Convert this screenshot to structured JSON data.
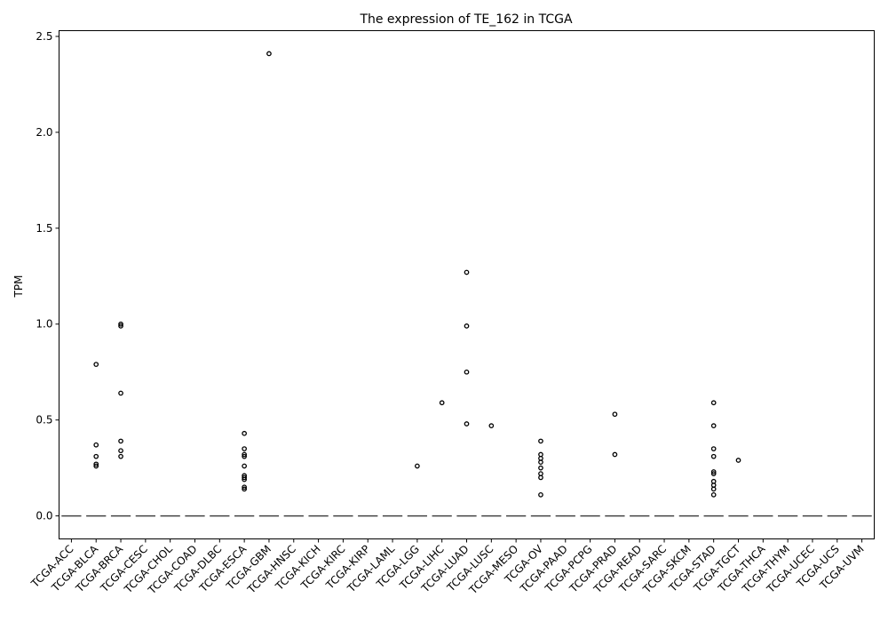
{
  "chart_data": {
    "type": "box",
    "title": "The expression of TE_162 in TCGA",
    "xlabel": "",
    "ylabel": "TPM",
    "ylim": [
      -0.12,
      2.53
    ],
    "yticks": [
      "0.0",
      "0.5",
      "1.0",
      "1.5",
      "2.0",
      "2.5"
    ],
    "categories": [
      "TCGA-ACC",
      "TCGA-BLCA",
      "TCGA-BRCA",
      "TCGA-CESC",
      "TCGA-CHOL",
      "TCGA-COAD",
      "TCGA-DLBC",
      "TCGA-ESCA",
      "TCGA-GBM",
      "TCGA-HNSC",
      "TCGA-KICH",
      "TCGA-KIRC",
      "TCGA-KIRP",
      "TCGA-LAML",
      "TCGA-LGG",
      "TCGA-LIHC",
      "TCGA-LUAD",
      "TCGA-LUSC",
      "TCGA-MESO",
      "TCGA-OV",
      "TCGA-PAAD",
      "TCGA-PCPG",
      "TCGA-PRAD",
      "TCGA-READ",
      "TCGA-SARC",
      "TCGA-SKCM",
      "TCGA-STAD",
      "TCGA-TGCT",
      "TCGA-THCA",
      "TCGA-THYM",
      "TCGA-UCEC",
      "TCGA-UCS",
      "TCGA-UVM"
    ],
    "median": 0.0,
    "outliers": [
      [],
      [
        0.79,
        0.37,
        0.31,
        0.27,
        0.26
      ],
      [
        1.0,
        0.99,
        0.64,
        0.39,
        0.34,
        0.31
      ],
      [],
      [],
      [],
      [],
      [
        0.43,
        0.35,
        0.32,
        0.31,
        0.26,
        0.21,
        0.2,
        0.19,
        0.15,
        0.14
      ],
      [
        2.41
      ],
      [],
      [],
      [],
      [],
      [],
      [
        0.26
      ],
      [
        0.59
      ],
      [
        1.27,
        0.99,
        0.75,
        0.48
      ],
      [
        0.47
      ],
      [],
      [
        0.39,
        0.32,
        0.3,
        0.28,
        0.25,
        0.22,
        0.2,
        0.11
      ],
      [],
      [],
      [
        0.53,
        0.32
      ],
      [],
      [],
      [],
      [
        0.59,
        0.47,
        0.35,
        0.31,
        0.23,
        0.22,
        0.18,
        0.16,
        0.14,
        0.11
      ],
      [
        0.29
      ],
      [],
      [],
      [],
      [],
      []
    ]
  }
}
